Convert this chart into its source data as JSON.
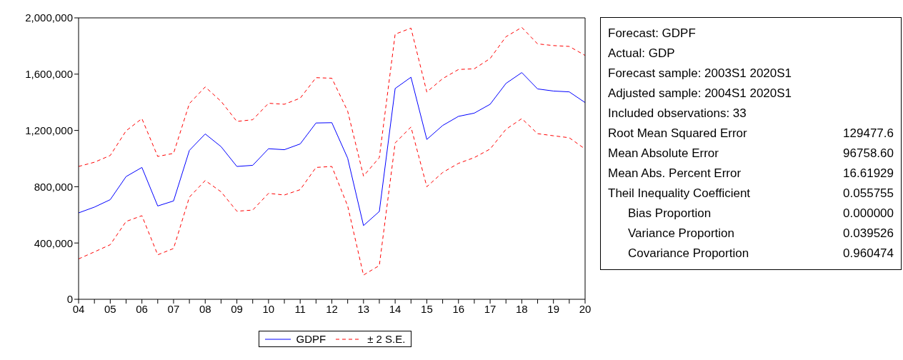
{
  "chart_data": {
    "type": "line",
    "categories": [
      "04",
      null,
      "05",
      null,
      "06",
      null,
      "07",
      null,
      "08",
      null,
      "09",
      null,
      "10",
      null,
      "11",
      null,
      "12",
      null,
      "13",
      null,
      "14",
      null,
      "15",
      null,
      "16",
      null,
      "17",
      null,
      "18",
      null,
      "19",
      null,
      "20"
    ],
    "series": [
      {
        "name": "GDPF",
        "color": "#0000ff",
        "line_style": "solid",
        "values": [
          614000,
          655000,
          708000,
          872000,
          937000,
          663000,
          699000,
          1058000,
          1175000,
          1085000,
          944000,
          952000,
          1070000,
          1063000,
          1104000,
          1253000,
          1255000,
          1003000,
          524000,
          624000,
          1498000,
          1578000,
          1136000,
          1235000,
          1300000,
          1323000,
          1386000,
          1534000,
          1611000,
          1495000,
          1480000,
          1474000,
          1398000
        ]
      },
      {
        "name": "± 2 S.E.",
        "color": "#ff0000",
        "line_style": "dashed",
        "values": [
          944000,
          974000,
          1022000,
          1197000,
          1284000,
          1015000,
          1037000,
          1391000,
          1509000,
          1407000,
          1264000,
          1276000,
          1393000,
          1386000,
          1429000,
          1575000,
          1571000,
          1337000,
          876000,
          1007000,
          1884000,
          1927000,
          1473000,
          1568000,
          1633000,
          1638000,
          1711000,
          1866000,
          1932000,
          1815000,
          1803000,
          1797000,
          1733000
        ]
      },
      {
        "color": "#ff0000",
        "line_style": "dashed",
        "values": [
          287000,
          337000,
          388000,
          553000,
          594000,
          316000,
          361000,
          726000,
          844000,
          764000,
          626000,
          634000,
          753000,
          741000,
          779000,
          937000,
          944000,
          663000,
          172000,
          240000,
          1111000,
          1224000,
          800000,
          901000,
          966000,
          1007000,
          1068000,
          1208000,
          1284000,
          1177000,
          1162000,
          1148000,
          1068000
        ]
      }
    ],
    "ylim": [
      0,
      2000000
    ],
    "yticks": [
      0,
      {
        "value": 400000,
        "label": "400,000"
      },
      {
        "value": 800000,
        "label": "800,000"
      },
      {
        "value": 1200000,
        "label": "1,200,000"
      },
      {
        "value": 1600000,
        "label": "1,600,000"
      },
      {
        "value": 2000000,
        "label": "2,000,000"
      }
    ],
    "grid": false,
    "marker": "none",
    "legend": "bottom",
    "annotations": [
      "Forecast: GDPF",
      "Actual: GDP",
      "Forecast sample: 2003S1 2020S1",
      "Adjusted sample: 2004S1 2020S1",
      "Included observations: 33",
      "Root Mean Squared Error\t129477.6",
      "Mean Absolute Error\t96758.60",
      "Mean Abs. Percent Error\t16.61929",
      "Theil Inequality Coefficient\t0.055755",
      "Bias Proportion\t0.000000",
      "Variance Proportion\t0.039526",
      "Covariance Proportion\t0.960474"
    ]
  }
}
